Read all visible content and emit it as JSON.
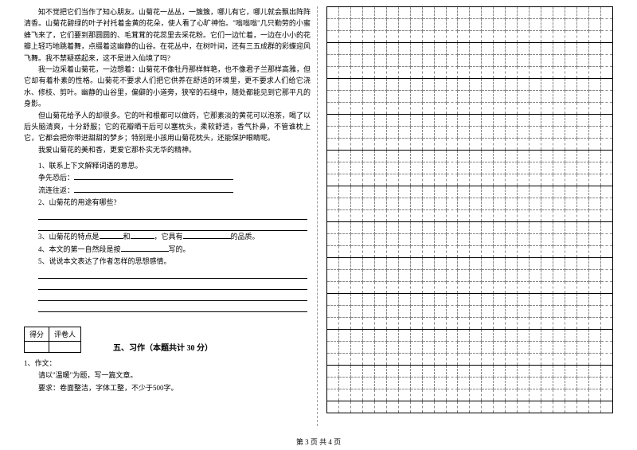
{
  "passage": {
    "p1": "知不觉把它们当作了知心朋友。山菊花一丛丛，一簇簇，哪儿有它，哪儿就会飘出阵阵清香。山菊花碧绿的叶子衬托着金黄的花朵，使人看了心旷神怡。\"嗡嗡嗡\"几只勤劳的小蜜蜂飞来了，它们要到那圆圆的、毛茸茸的花蕊里去采花粉。它们一边忙着，一边在小小的花瓣上轻巧地跳着舞，点缀着这幽静的山谷。在花丛中，在树叶间，还有三五成群的彩蝶迎风飞舞。我不禁疑惑起来，这不是进入仙境了吗?",
    "p2": "我一边采着山菊花，一边想着：山菊花不像牡丹那样鲜艳，也不像君子兰那样高雅，但它却有着朴素的性格。山菊花不要求人们把它供养在舒适的环境里，更不要求人们给它浇水、修枝、剪叶。幽静的山谷里，偏僻的小道旁，狭窄的石缝中，随处都能见到它那平凡的身影。",
    "p3": "但山菊花给予人的却很多。它的叶和根都可以做药，它那素淡的黄花可以泡茶，喝了以后头脑清爽，十分舒服；它的花瓣晒干后可以塞枕头，柔软舒适，香气扑鼻，不管谁枕上它，它都会把你带进甜甜的梦乡；特别是小孩用山菊花枕头，还能保护眼睛呢。",
    "p4": "我爱山菊花的美和香，更爱它那朴实无华的精神。"
  },
  "questions": {
    "q1_title": "1、联系上下文解释词语的意思。",
    "q1_a": "争先恐后：",
    "q1_b": "流连往返：",
    "q2": "2、山菊花的用途有哪些?",
    "q3_pre": "3、山菊花的特点是",
    "q3_mid": "和",
    "q3_mid2": "，它具有",
    "q3_end": "的品质。",
    "q4_pre": "4、本文的第一自然段是按",
    "q4_end": "写的。",
    "q5": "5、说说本文表达了作者怎样的思想感情。"
  },
  "scoreLabels": {
    "score": "得分",
    "reviewer": "评卷人"
  },
  "section5": {
    "title": "五、习作（本题共计 30 分）",
    "item1": "1、作文：",
    "line1": "请以\"温暖\"为题，写一篇文章。",
    "line2": "要求：卷面整洁，字体工整，不少于500字。"
  },
  "footer": "第 3 页 共 4 页",
  "grid": {
    "rows": 34,
    "cols": 24
  }
}
